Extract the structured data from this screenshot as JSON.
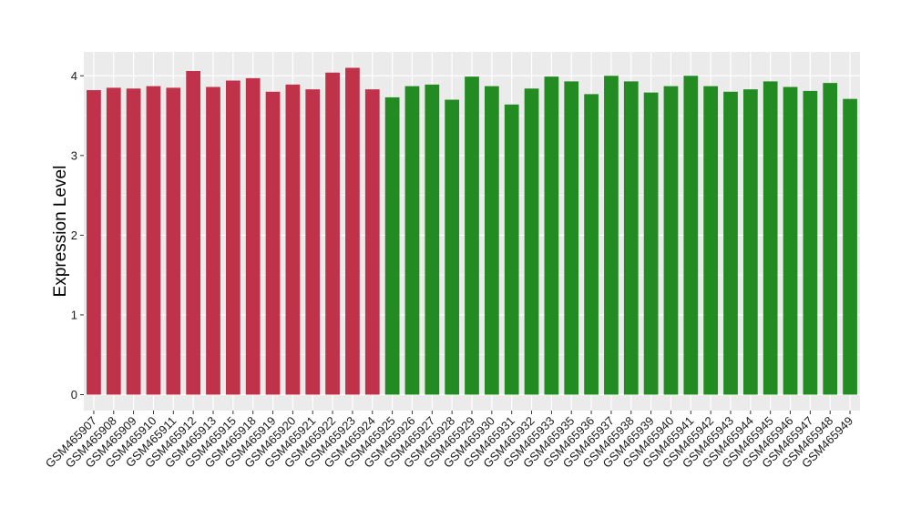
{
  "chart_data": {
    "type": "bar",
    "title": "",
    "xlabel": "",
    "ylabel": "Expression Level",
    "ylim": [
      -0.2,
      4.3
    ],
    "yticks": [
      0,
      1,
      2,
      3,
      4
    ],
    "grid": true,
    "legend": "none",
    "categories": [
      "GSM465907",
      "GSM465908",
      "GSM465909",
      "GSM465910",
      "GSM465911",
      "GSM465912",
      "GSM465913",
      "GSM465915",
      "GSM465918",
      "GSM465919",
      "GSM465920",
      "GSM465921",
      "GSM465922",
      "GSM465923",
      "GSM465924",
      "GSM465925",
      "GSM465926",
      "GSM465927",
      "GSM465928",
      "GSM465929",
      "GSM465930",
      "GSM465931",
      "GSM465932",
      "GSM465933",
      "GSM465935",
      "GSM465936",
      "GSM465937",
      "GSM465938",
      "GSM465939",
      "GSM465940",
      "GSM465941",
      "GSM465942",
      "GSM465943",
      "GSM465944",
      "GSM465945",
      "GSM465946",
      "GSM465947",
      "GSM465948",
      "GSM465949"
    ],
    "values": [
      3.82,
      3.85,
      3.84,
      3.87,
      3.85,
      4.06,
      3.86,
      3.94,
      3.97,
      3.8,
      3.89,
      3.83,
      4.04,
      4.1,
      3.83,
      3.73,
      3.87,
      3.89,
      3.7,
      3.99,
      3.87,
      3.64,
      3.84,
      3.99,
      3.93,
      3.77,
      4.0,
      3.93,
      3.79,
      3.87,
      4.0,
      3.87,
      3.8,
      3.83,
      3.93,
      3.86,
      3.81,
      3.91,
      3.71
    ],
    "group_sizes": [
      15,
      24
    ],
    "colors": {
      "group_1": "#c0314a",
      "group_2": "#228b22",
      "panel_background": "#ebebeb",
      "grid_line": "#ffffff"
    }
  }
}
